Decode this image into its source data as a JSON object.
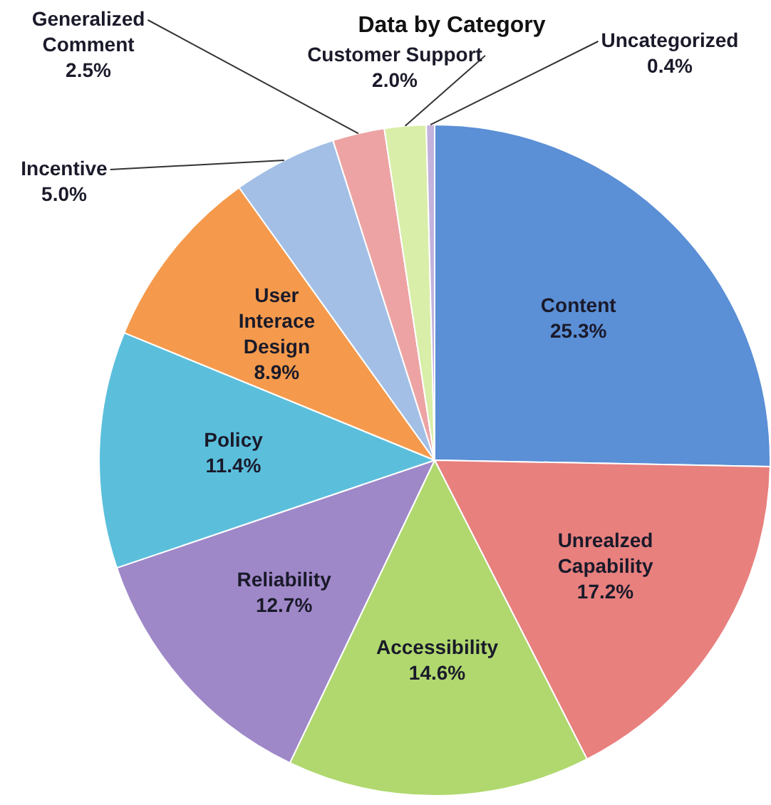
{
  "chart_data": {
    "type": "pie",
    "title": "Data by Category",
    "categories": [
      "Content",
      "Unrealzed Capability",
      "Accessibility",
      "Reliability",
      "Policy",
      "User Interace Design",
      "Incentive",
      "Generalized Comment",
      "Customer Support",
      "Uncategorized"
    ],
    "values": [
      25.3,
      17.2,
      14.6,
      12.7,
      11.4,
      8.9,
      5.0,
      2.5,
      2.0,
      0.4
    ],
    "colors": [
      "#5b8fd6",
      "#e8807e",
      "#b0d86e",
      "#9f88c8",
      "#5bbfdc",
      "#f59a4c",
      "#a3bfe6",
      "#eda3a3",
      "#d9eea8",
      "#c2b2dc"
    ],
    "value_labels": [
      "25.3%",
      "17.2%",
      "14.6%",
      "12.7%",
      "11.4%",
      "8.9%",
      "5.0%",
      "2.5%",
      "2.0%",
      "0.4%"
    ],
    "legend": false
  }
}
